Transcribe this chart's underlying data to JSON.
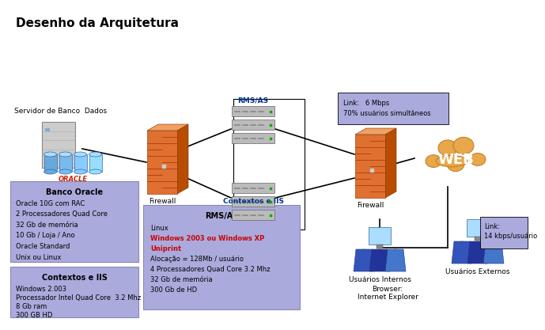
{
  "title": "Desenho da Arquitetura",
  "title_color": "#000000",
  "bg_color": "#ffffff",
  "label_server": "Servidor de Banco  Dados",
  "label_firewall1": "Firewall",
  "label_firewall2": "Firewall",
  "label_rms_top": "RMS/AS",
  "label_iis_top": "Contextos e IIS",
  "label_web": "WEB",
  "label_users_int": "Usuários Internos",
  "label_users_ext": "Usuários Externos",
  "label_browser": "Browser:\nInternet Explorer",
  "link_box1_line1": "Link:   6 Mbps",
  "link_box1_line2": "70% usuários simultâneos",
  "link_box2_line1": "Link:",
  "link_box2_line2": "14 kbps/usuário",
  "oracle_box_title": "Banco Oracle",
  "oracle_box_lines": [
    "Oracle 10G com RAC",
    "2 Processadores Quad Core",
    "32 Gb de memória",
    "10 Gb / Loja / Ano",
    "Oracle Standard",
    "Unix ou Linux"
  ],
  "iis_box_title": "Contextos e IIS",
  "iis_box_lines": [
    "Windows 2.003",
    "Processador Intel Quad Core  3.2 Mhz",
    "8 Gb ram",
    "300 GB HD"
  ],
  "rms_box_title": "RMS/AS",
  "rms_box_black1": [
    "Linux"
  ],
  "rms_box_red": [
    "Windows 2003 ou Windows XP",
    "Uniprint"
  ],
  "rms_box_black2": [
    "Alocação = 128Mb / usuário",
    "4 Processadores Quad Core 3.2 Mhz",
    "32 Gb de memória",
    "300 Gb de HD"
  ],
  "text_color_red": "#cc0000",
  "box_bg": "#aaaadd",
  "box_edge": "#8888bb"
}
